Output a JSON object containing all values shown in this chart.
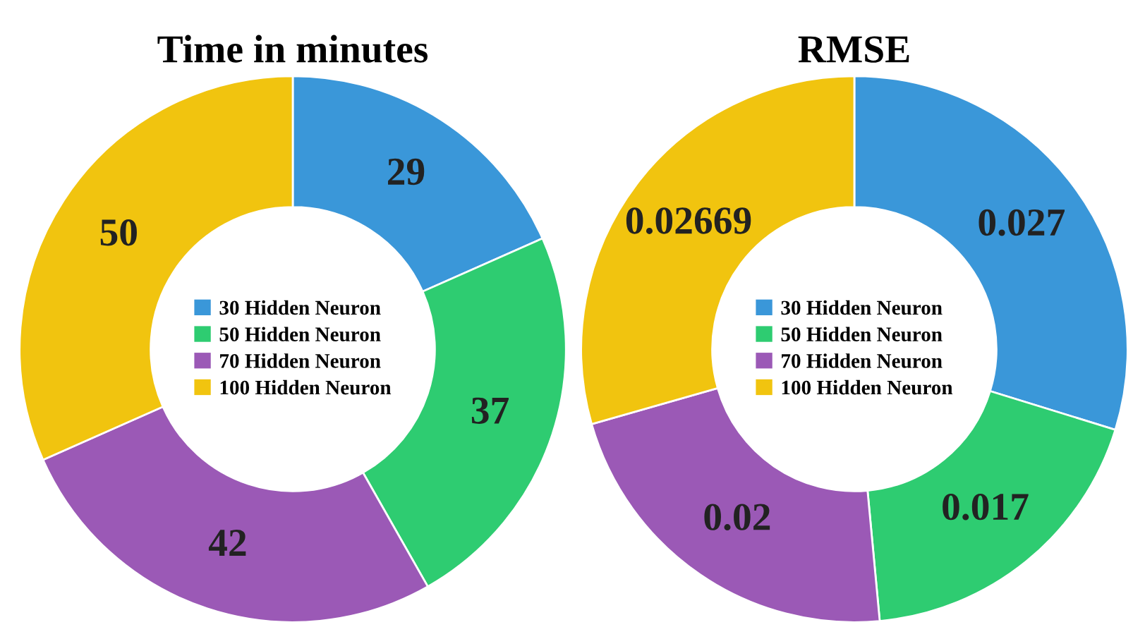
{
  "chart_data": [
    {
      "type": "donut",
      "title": "Time in minutes",
      "categories": [
        "30 Hidden Neuron",
        "50 Hidden Neuron",
        "70 Hidden Neuron",
        "100 Hidden Neuron"
      ],
      "values": [
        29,
        37,
        42,
        50
      ],
      "colors": [
        "#3a97d9",
        "#2ecc71",
        "#9b59b6",
        "#f1c40f"
      ],
      "data_labels": true,
      "legend": "center"
    },
    {
      "type": "donut",
      "title": "RMSE",
      "categories": [
        "30 Hidden Neuron",
        "50 Hidden Neuron",
        "70 Hidden Neuron",
        "100 Hidden Neuron"
      ],
      "values": [
        0.027,
        0.017,
        0.02,
        0.02669
      ],
      "colors": [
        "#3a97d9",
        "#2ecc71",
        "#9b59b6",
        "#f1c40f"
      ],
      "data_labels": true,
      "legend": "center"
    }
  ]
}
